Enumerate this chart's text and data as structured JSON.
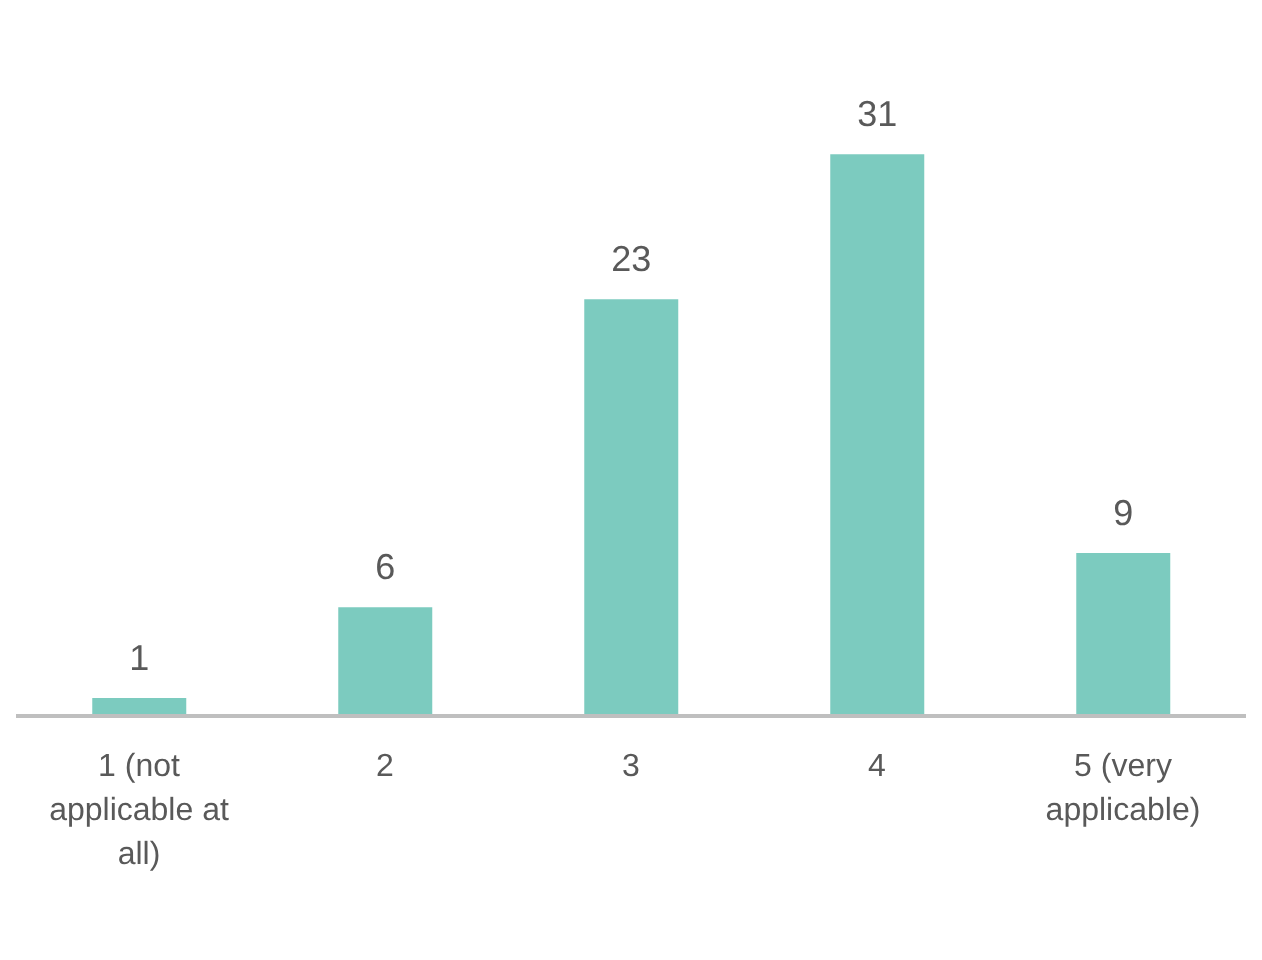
{
  "chart_data": {
    "type": "bar",
    "categories": [
      "1 (not applicable at all)",
      "2",
      "3",
      "4",
      "5 (very applicable)"
    ],
    "values": [
      1,
      6,
      23,
      31,
      9
    ],
    "color": "#7ccbbf",
    "data_labels": true
  }
}
